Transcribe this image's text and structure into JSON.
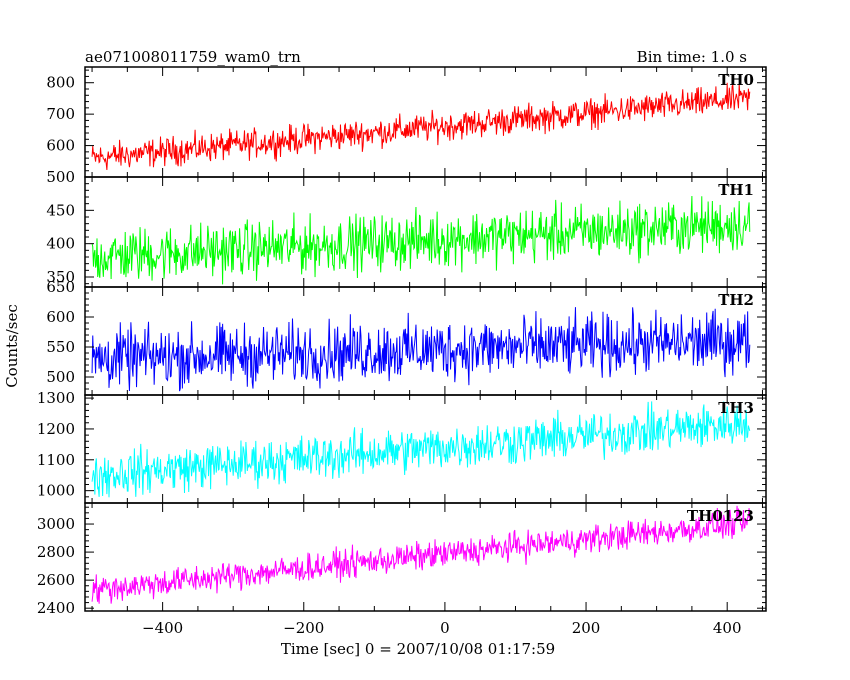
{
  "header": {
    "title": "ae071008011759_wam0_trn",
    "bin_time": "Bin time: 1.0 s"
  },
  "axes": {
    "ylabel": "Counts/sec",
    "xlabel": "Time [sec] 0 = 2007/10/08 01:17:59",
    "x_ticks": [
      "−400",
      "−200",
      "0",
      "200",
      "400"
    ]
  },
  "chart_data": [
    {
      "type": "line",
      "name": "TH0",
      "color": "#ff0000",
      "xlim": [
        -510,
        455
      ],
      "ylim": [
        500,
        850
      ],
      "x_range": [
        -500,
        432
      ],
      "start_level": 560,
      "end_level": 750,
      "noise_range": 50,
      "y_ticks": [
        "500",
        "600",
        "700",
        "800"
      ]
    },
    {
      "type": "line",
      "name": "TH1",
      "color": "#00ff00",
      "xlim": [
        -510,
        455
      ],
      "ylim": [
        335,
        500
      ],
      "x_range": [
        -500,
        432
      ],
      "start_level": 380,
      "end_level": 430,
      "noise_range": 45,
      "y_ticks": [
        "350",
        "400",
        "450"
      ]
    },
    {
      "type": "line",
      "name": "TH2",
      "color": "#0000ff",
      "xlim": [
        -510,
        455
      ],
      "ylim": [
        470,
        650
      ],
      "x_range": [
        -500,
        432
      ],
      "start_level": 530,
      "end_level": 560,
      "noise_range": 55,
      "y_ticks": [
        "500",
        "550",
        "600",
        "650"
      ]
    },
    {
      "type": "line",
      "name": "TH3",
      "color": "#00ffff",
      "xlim": [
        -510,
        455
      ],
      "ylim": [
        960,
        1310
      ],
      "x_range": [
        -500,
        432
      ],
      "start_level": 1050,
      "end_level": 1220,
      "noise_range": 80,
      "y_ticks": [
        "1000",
        "1100",
        "1200",
        "1300"
      ]
    },
    {
      "type": "line",
      "name": "TH0123",
      "color": "#ff00ff",
      "xlim": [
        -510,
        455
      ],
      "ylim": [
        2380,
        3150
      ],
      "x_range": [
        -500,
        432
      ],
      "start_level": 2530,
      "end_level": 3010,
      "noise_range": 110,
      "y_ticks": [
        "2400",
        "2600",
        "2800",
        "3000"
      ]
    }
  ]
}
